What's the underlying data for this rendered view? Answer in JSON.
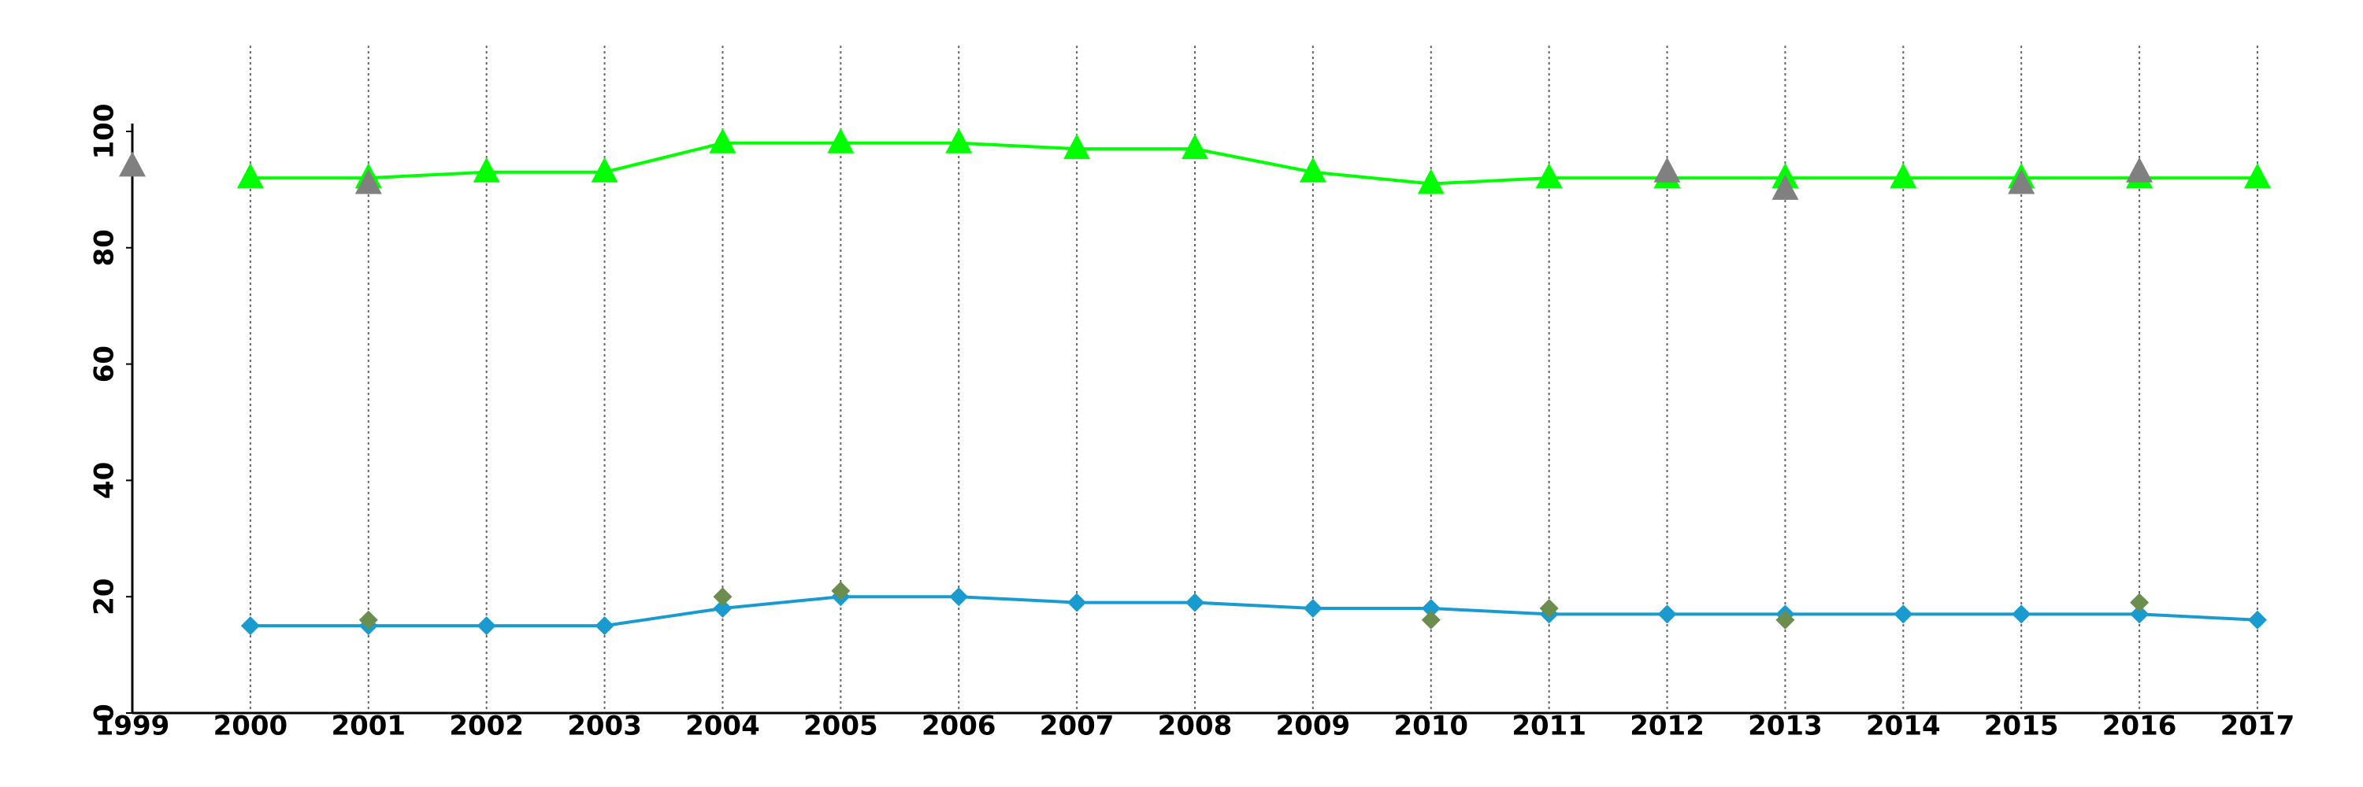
{
  "chart_data": {
    "type": "line",
    "x": [
      1999,
      2000,
      2001,
      2002,
      2003,
      2004,
      2005,
      2006,
      2007,
      2008,
      2009,
      2010,
      2011,
      2012,
      2013,
      2014,
      2015,
      2016,
      2017
    ],
    "series": [
      {
        "color": "#00ff00",
        "marker": "triangle",
        "line": true,
        "values": [
          null,
          92,
          92,
          93,
          93,
          98,
          98,
          98,
          97,
          97,
          93,
          91,
          92,
          92,
          92,
          92,
          92,
          92,
          92
        ]
      },
      {
        "color": "#1a9bd0",
        "marker": "diamond",
        "line": true,
        "values": [
          null,
          15,
          15,
          15,
          15,
          18,
          20,
          20,
          19,
          19,
          18,
          18,
          17,
          17,
          17,
          17,
          17,
          17,
          16
        ]
      },
      {
        "color": "#808080",
        "marker": "triangle",
        "line": false,
        "values": [
          94,
          null,
          91,
          null,
          null,
          null,
          null,
          null,
          null,
          null,
          null,
          null,
          null,
          93,
          90,
          null,
          91,
          93,
          null
        ]
      },
      {
        "color": "#6b8e4e",
        "marker": "diamond",
        "line": false,
        "values": [
          null,
          null,
          16,
          null,
          null,
          20,
          21,
          null,
          null,
          null,
          null,
          16,
          18,
          null,
          16,
          null,
          null,
          19,
          null
        ]
      }
    ],
    "xlim": [
      1999,
      2017
    ],
    "xticks": [
      1999,
      2000,
      2001,
      2002,
      2003,
      2004,
      2005,
      2006,
      2007,
      2008,
      2009,
      2010,
      2011,
      2012,
      2013,
      2014,
      2015,
      2016,
      2017
    ],
    "ylim": [
      0,
      100
    ],
    "yticks": [
      0,
      20,
      40,
      60,
      80,
      100
    ],
    "grid": "x"
  }
}
